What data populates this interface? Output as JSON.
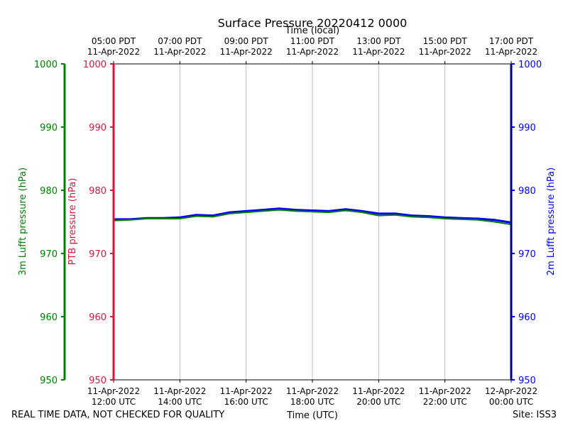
{
  "chart_data": {
    "type": "line",
    "title": "Surface Pressure 20220412 0000",
    "top_axis_label": "Time (local)",
    "bottom_axis_label": "Time (UTC)",
    "footer_left": "REAL TIME DATA, NOT CHECKED FOR QUALITY",
    "footer_right": "Site: ISS3",
    "ylim": [
      950,
      1000
    ],
    "y_ticks": [
      "950",
      "960",
      "970",
      "980",
      "990",
      "1000"
    ],
    "x_unit": "hours UTC since 11-Apr-2022 12:00",
    "xlim": [
      0,
      12
    ],
    "x_ticks_utc": [
      {
        "line1": "11-Apr-2022",
        "line2": "12:00 UTC"
      },
      {
        "line1": "11-Apr-2022",
        "line2": "14:00 UTC"
      },
      {
        "line1": "11-Apr-2022",
        "line2": "16:00 UTC"
      },
      {
        "line1": "11-Apr-2022",
        "line2": "18:00 UTC"
      },
      {
        "line1": "11-Apr-2022",
        "line2": "20:00 UTC"
      },
      {
        "line1": "11-Apr-2022",
        "line2": "22:00 UTC"
      },
      {
        "line1": "12-Apr-2022",
        "line2": "00:00 UTC"
      }
    ],
    "x_ticks_local": [
      {
        "line1": "05:00 PDT",
        "line2": "11-Apr-2022"
      },
      {
        "line1": "07:00 PDT",
        "line2": "11-Apr-2022"
      },
      {
        "line1": "09:00 PDT",
        "line2": "11-Apr-2022"
      },
      {
        "line1": "11:00 PDT",
        "line2": "11-Apr-2022"
      },
      {
        "line1": "13:00 PDT",
        "line2": "11-Apr-2022"
      },
      {
        "line1": "15:00 PDT",
        "line2": "11-Apr-2022"
      },
      {
        "line1": "17:00 PDT",
        "line2": "11-Apr-2022"
      }
    ],
    "axes": [
      {
        "label": "3m Lufft pressure (hPa)",
        "color": "#008000"
      },
      {
        "label": "PTB pressure (hPa)",
        "color": "#dc143c"
      },
      {
        "label": "2m Lufft pressure (hPa)",
        "color": "#0000ff"
      }
    ],
    "grid": "vertical",
    "series": [
      {
        "color": "#0000ff",
        "x": [
          0,
          0.5,
          1,
          1.5,
          2,
          2.5,
          3,
          3.5,
          4,
          4.5,
          5,
          5.5,
          6,
          6.5,
          7,
          7.5,
          8,
          8.5,
          9,
          9.5,
          10,
          10.5,
          11,
          11.5,
          12
        ],
        "values": [
          975.4,
          975.4,
          975.6,
          975.6,
          975.7,
          976.1,
          976.0,
          976.5,
          976.7,
          976.9,
          977.1,
          976.9,
          976.8,
          976.7,
          977.0,
          976.7,
          976.3,
          976.3,
          976.0,
          975.9,
          975.7,
          975.6,
          975.5,
          975.3,
          974.9
        ]
      },
      {
        "color": "#008000",
        "x": [
          0,
          0.5,
          1,
          1.5,
          2,
          2.5,
          3,
          3.5,
          4,
          4.5,
          5,
          5.5,
          6,
          6.5,
          7,
          7.5,
          8,
          8.5,
          9,
          9.5,
          10,
          10.5,
          11,
          11.5,
          12
        ],
        "values": [
          975.2,
          975.3,
          975.5,
          975.5,
          975.5,
          975.9,
          975.8,
          976.3,
          976.5,
          976.7,
          976.9,
          976.7,
          976.6,
          976.5,
          976.8,
          976.5,
          976.0,
          976.1,
          975.8,
          975.7,
          975.5,
          975.4,
          975.3,
          975.0,
          974.6
        ]
      }
    ]
  }
}
